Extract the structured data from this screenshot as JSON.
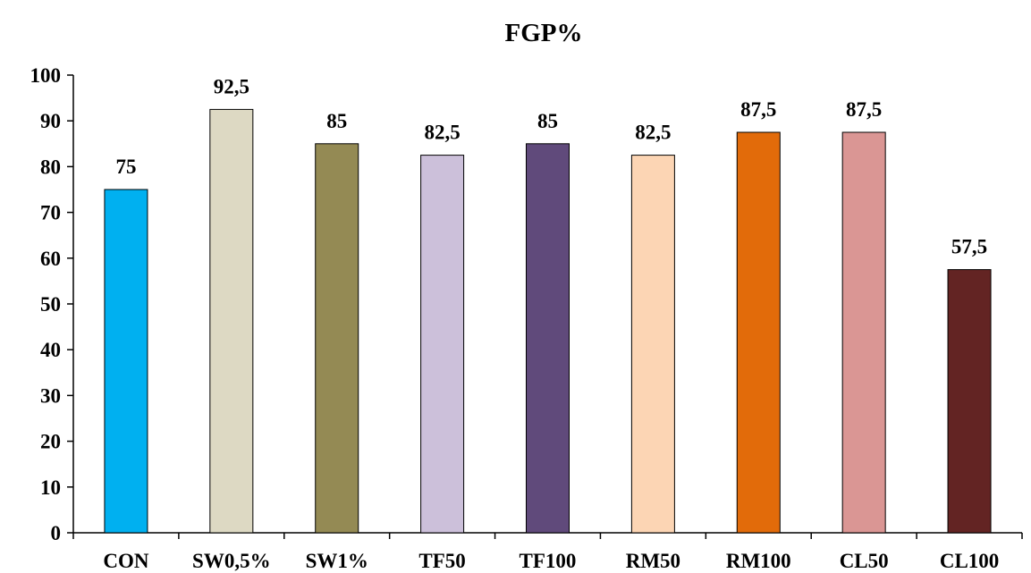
{
  "chart_data": {
    "type": "bar",
    "title": "FGP%",
    "xlabel": "",
    "ylabel": "",
    "categories": [
      "CON",
      "SW0,5%",
      "SW1%",
      "TF50",
      "TF100",
      "RM50",
      "RM100",
      "CL50",
      "CL100"
    ],
    "values": [
      75,
      92.5,
      85,
      82.5,
      85,
      82.5,
      87.5,
      87.5,
      57.5
    ],
    "data_labels": [
      "75",
      "92,5",
      "85",
      "82,5",
      "85",
      "82,5",
      "87,5",
      "87,5",
      "57,5"
    ],
    "colors": [
      "#00b0f0",
      "#ddd9c3",
      "#948a54",
      "#ccc0da",
      "#604a7b",
      "#fcd5b4",
      "#e26b0a",
      "#da9694",
      "#632423"
    ],
    "ylim": [
      0,
      100
    ],
    "yticks": [
      "0",
      "10",
      "20",
      "30",
      "40",
      "50",
      "60",
      "70",
      "80",
      "90",
      "100"
    ],
    "grid": false,
    "legend": "none"
  }
}
